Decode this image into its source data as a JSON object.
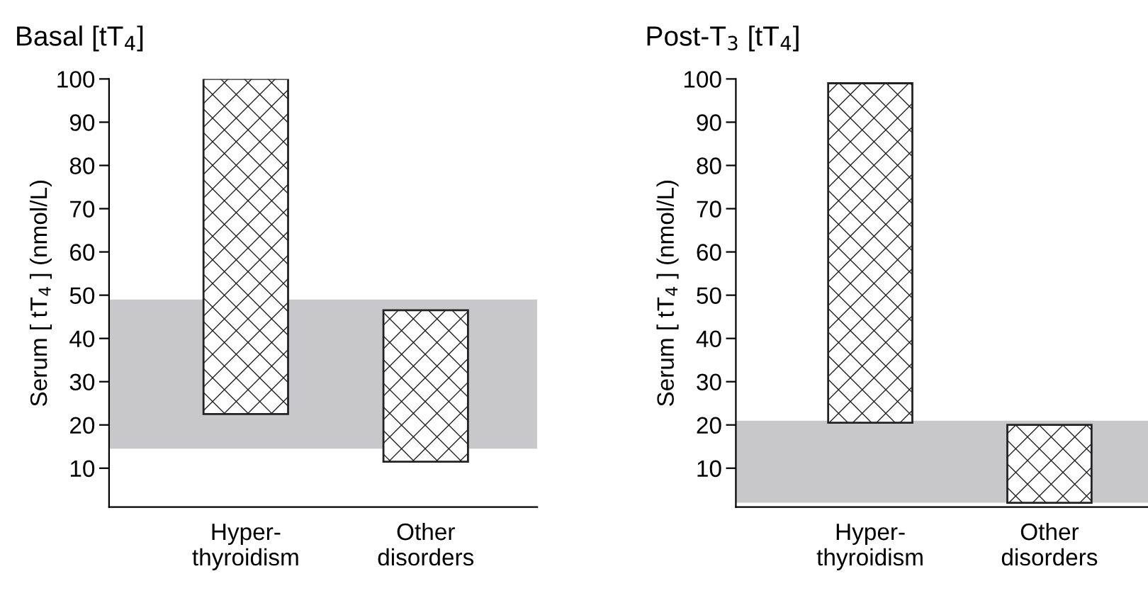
{
  "chart_data": [
    {
      "type": "bar",
      "title": "Basal [tT$_{4}$]",
      "ylabel": "Serum [ tT$_{4}$ ] (nmol/L)",
      "categories": [
        "Hyper-\nthyroidism",
        "Other\ndisorders"
      ],
      "values": [
        77.5,
        35
      ],
      "base": [
        22.5,
        11.5
      ],
      "color": "#222222",
      "ylim": [
        1,
        100
      ],
      "yticks": [
        10,
        20,
        30,
        40,
        50,
        60,
        70,
        80,
        90,
        100
      ],
      "grid": false,
      "legend": false,
      "bands": [
        {
          "axis": "y",
          "from": 14.5,
          "to": 49,
          "color": "#c8c8ca"
        }
      ]
    },
    {
      "type": "bar",
      "title": "Post-T$_{3}$ [tT$_{4}$]",
      "ylabel": "Serum [ tT$_{4}$ ] (nmol/L)",
      "categories": [
        "Hyper-\nthyroidism",
        "Other\ndisorders"
      ],
      "values": [
        78.5,
        18
      ],
      "base": [
        20.5,
        2
      ],
      "color": "#222222",
      "ylim": [
        1,
        100
      ],
      "yticks": [
        10,
        20,
        30,
        40,
        50,
        60,
        70,
        80,
        90,
        100
      ],
      "grid": false,
      "legend": false,
      "bands": [
        {
          "axis": "y",
          "from": 2,
          "to": 21,
          "color": "#c8c8ca"
        }
      ]
    }
  ]
}
